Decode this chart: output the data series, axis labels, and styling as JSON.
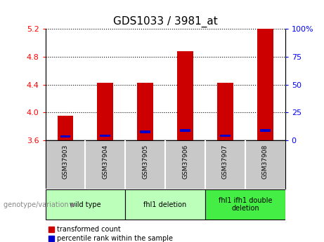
{
  "title": "GDS1033 / 3981_at",
  "samples": [
    "GSM37903",
    "GSM37904",
    "GSM37905",
    "GSM37906",
    "GSM37907",
    "GSM37908"
  ],
  "red_values": [
    3.95,
    4.43,
    4.43,
    4.88,
    4.43,
    5.2
  ],
  "blue_values": [
    3.655,
    3.668,
    3.72,
    3.742,
    3.668,
    3.742
  ],
  "ylim_left": [
    3.6,
    5.2
  ],
  "ylim_right": [
    0,
    100
  ],
  "yticks_left": [
    3.6,
    4.0,
    4.4,
    4.8,
    5.2
  ],
  "yticks_right": [
    0,
    25,
    50,
    75,
    100
  ],
  "ytick_labels_right": [
    "0",
    "25",
    "50",
    "75",
    "100%"
  ],
  "bar_width": 0.4,
  "red_color": "#cc0000",
  "blue_color": "#0000cc",
  "bg_plot": "#ffffff",
  "bg_sample_labels": "#c8c8c8",
  "group_color": "#aaffaa",
  "group_color_3": "#55ee55",
  "groups": [
    {
      "label": "wild type",
      "start": 0,
      "end": 1
    },
    {
      "label": "fhl1 deletion",
      "start": 2,
      "end": 3
    },
    {
      "label": "fhl1 ifh1 double\ndeletion",
      "start": 4,
      "end": 5
    }
  ],
  "legend_red": "transformed count",
  "legend_blue": "percentile rank within the sample",
  "genotype_label": "genotype/variation"
}
